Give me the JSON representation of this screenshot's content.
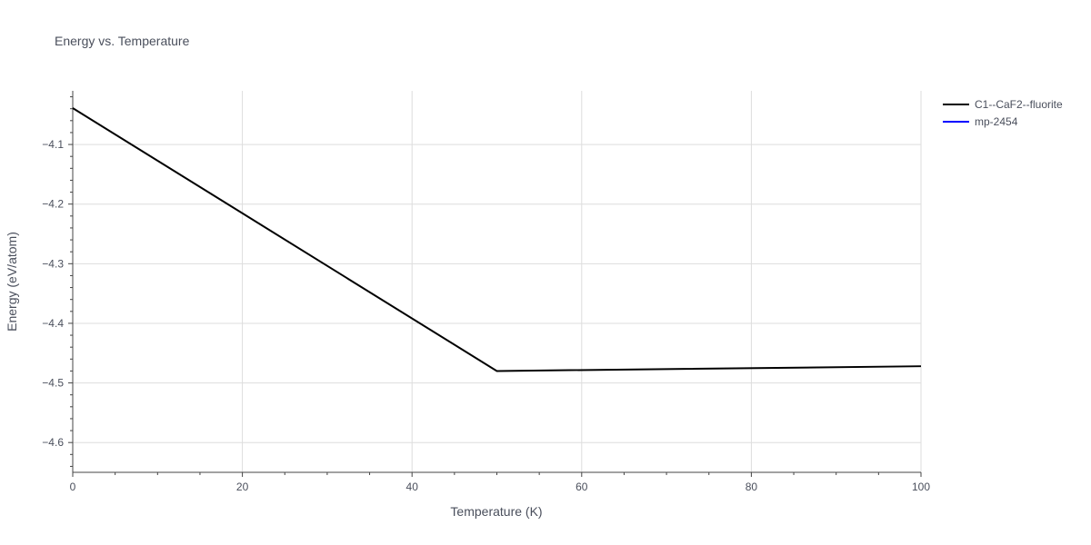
{
  "chart_data": {
    "type": "line",
    "title": "Energy vs. Temperature",
    "xlabel": "Temperature (K)",
    "ylabel": "Energy (eV/atom)",
    "xlim": [
      0,
      100
    ],
    "ylim": [
      -4.65,
      -4.01
    ],
    "x_ticks": [
      0,
      20,
      40,
      60,
      80,
      100
    ],
    "y_ticks": [
      -4.1,
      -4.2,
      -4.3,
      -4.4,
      -4.5,
      -4.6
    ],
    "x_tick_labels": [
      "0",
      "20",
      "40",
      "60",
      "80",
      "100"
    ],
    "y_tick_labels": [
      "−4.1",
      "−4.2",
      "−4.3",
      "−4.4",
      "−4.5",
      "−4.6"
    ],
    "grid": true,
    "legend_position": "top-right",
    "series": [
      {
        "name": "C1--CaF2--fluorite",
        "color": "#000000",
        "x": [
          0,
          50,
          100
        ],
        "y": [
          -4.039,
          -4.48,
          -4.472
        ]
      },
      {
        "name": "mp-2454",
        "color": "#0000ff",
        "x": [],
        "y": []
      }
    ]
  }
}
